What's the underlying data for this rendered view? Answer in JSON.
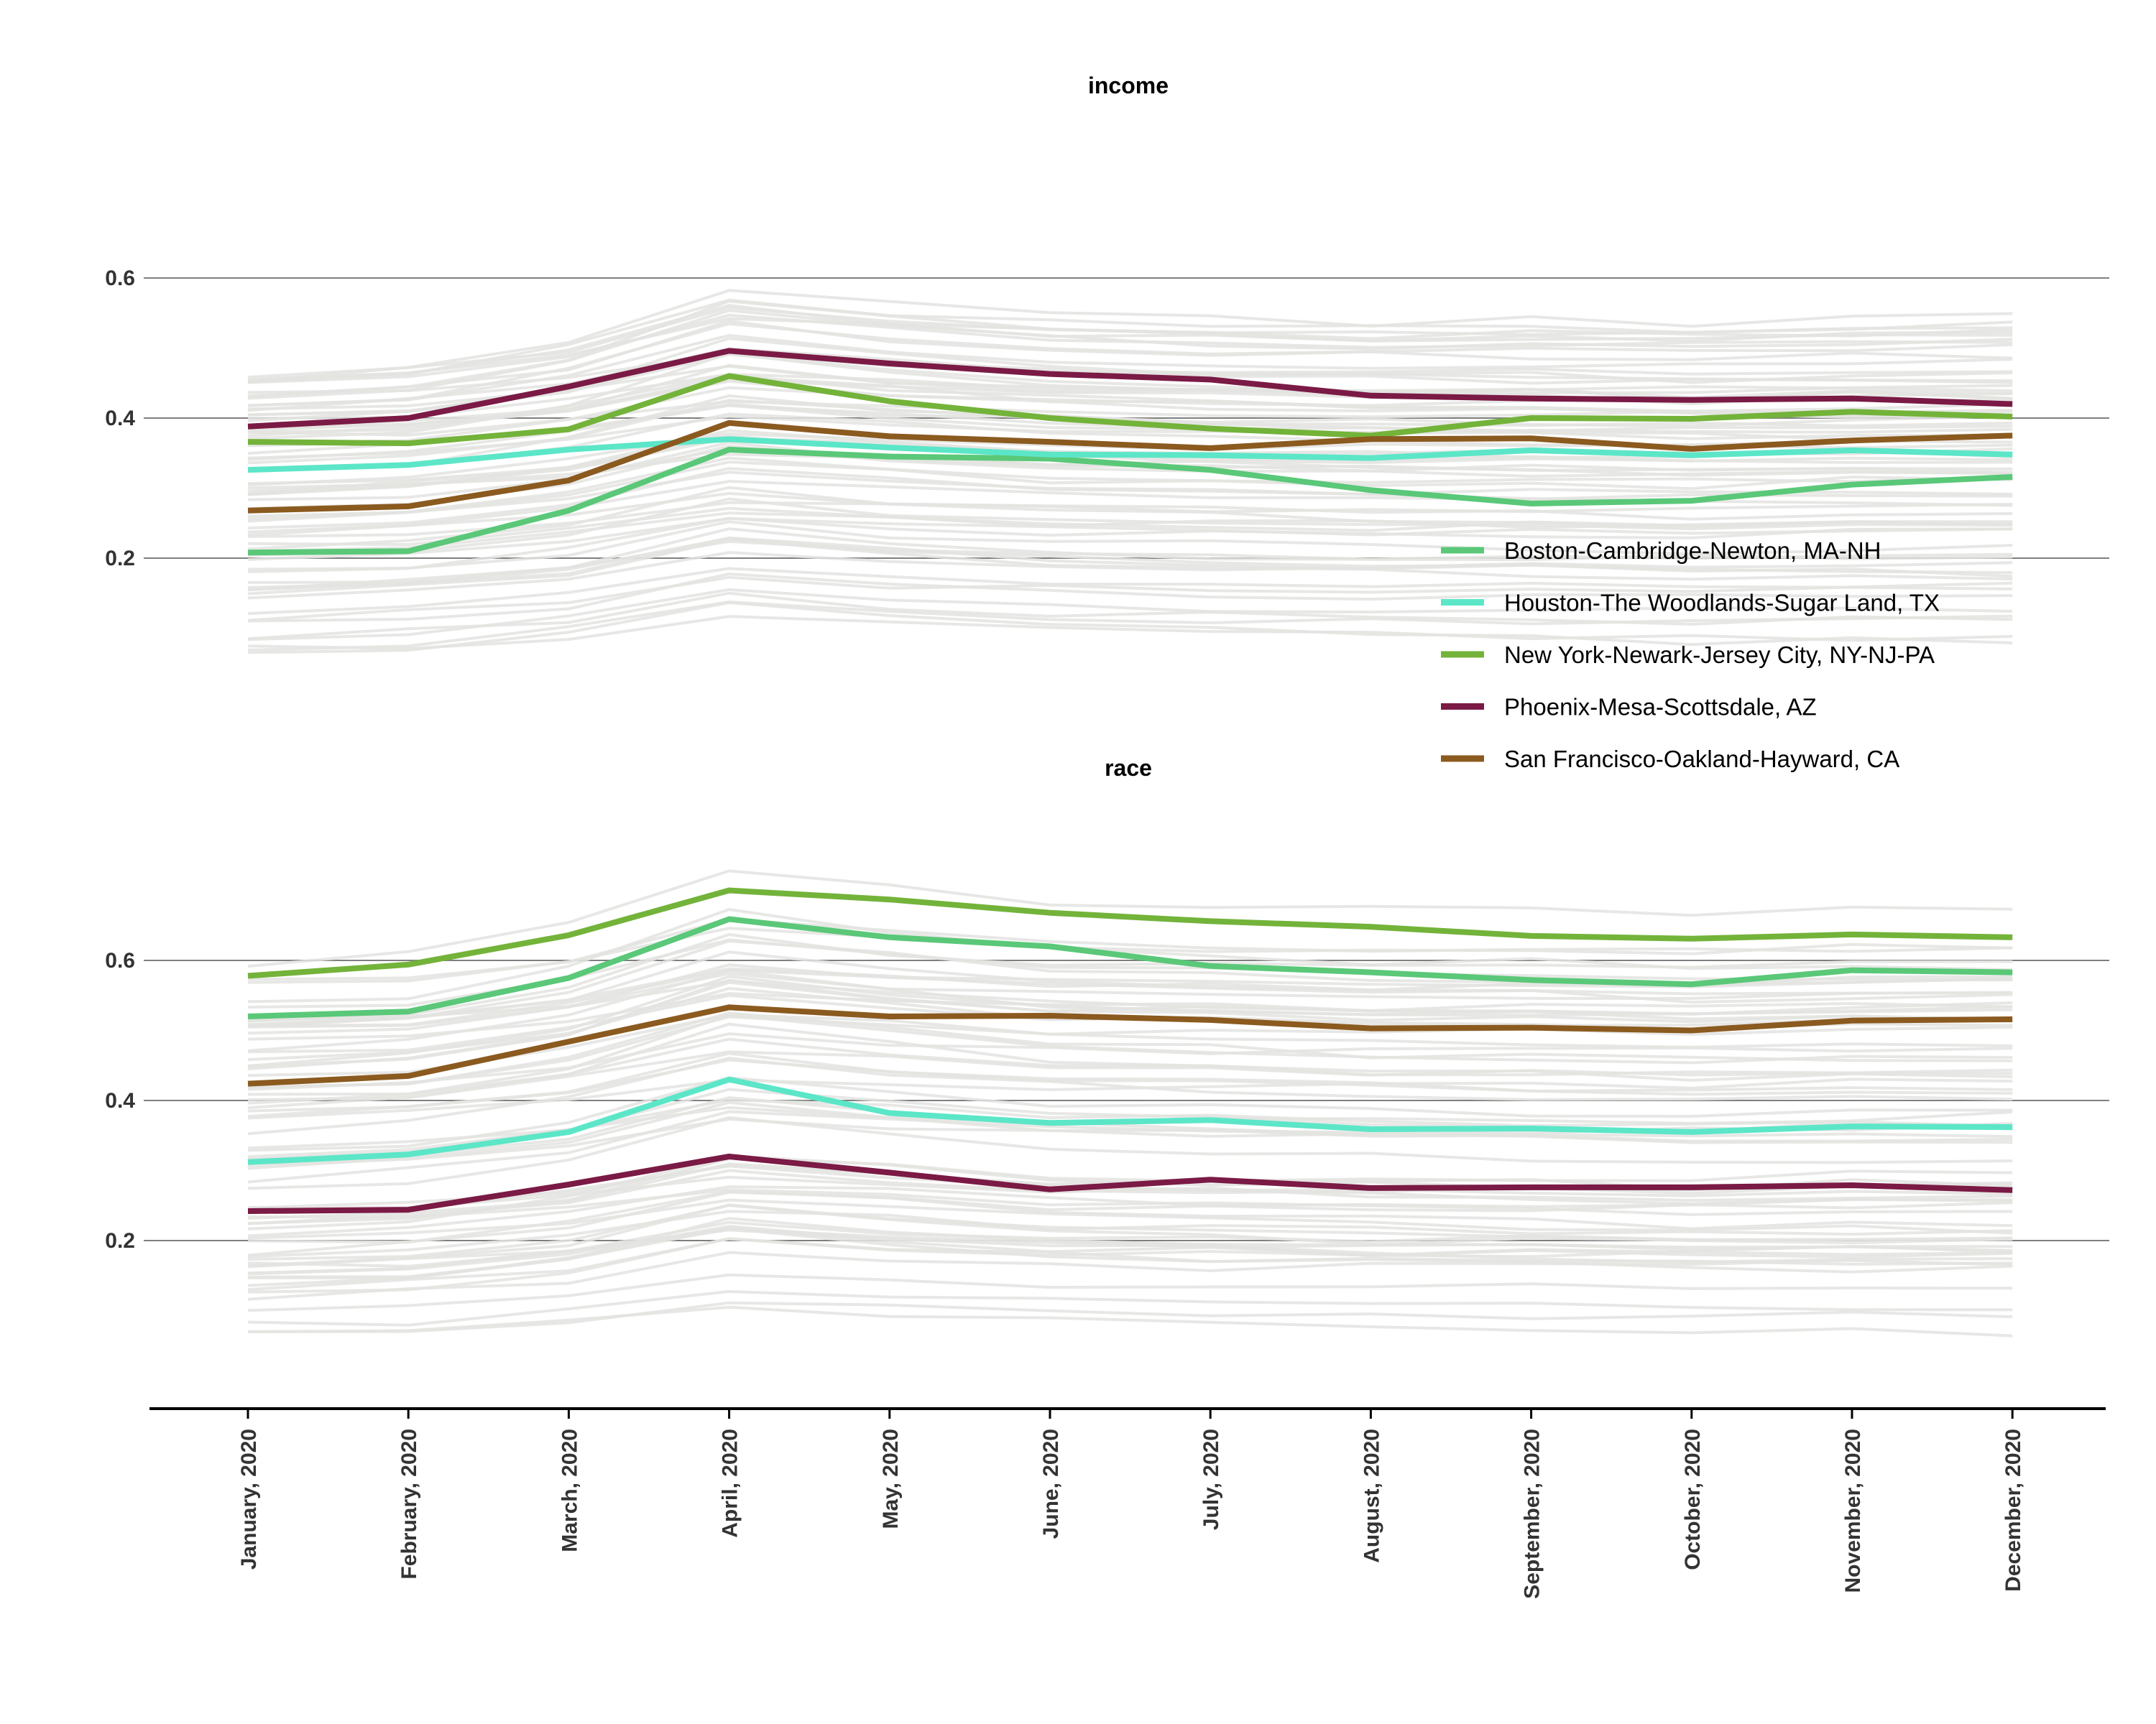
{
  "chart_data": {
    "type": "line",
    "x": [
      "January, 2020",
      "February, 2020",
      "March, 2020",
      "April, 2020",
      "May, 2020",
      "June, 2020",
      "July, 2020",
      "August, 2020",
      "September, 2020",
      "October, 2020",
      "November, 2020",
      "December, 2020"
    ],
    "grid": "horizontal",
    "legend_position": "right",
    "legend": [
      {
        "name": "Boston-Cambridge-Newton, MA-NH",
        "color": "#5ac878"
      },
      {
        "name": "Houston-The Woodlands-Sugar Land, TX",
        "color": "#5ce6c8"
      },
      {
        "name": "New York-Newark-Jersey City, NY-NJ-PA",
        "color": "#73b33a"
      },
      {
        "name": "Phoenix-Mesa-Scottsdale, AZ",
        "color": "#7a1a45"
      },
      {
        "name": "San Francisco-Oakland-Hayward, CA",
        "color": "#8b5a1f"
      }
    ],
    "background_color": "#e3e3e1",
    "panels": [
      {
        "title": "income",
        "yticks": [
          "0.2",
          "0.4",
          "0.6"
        ],
        "series": [
          {
            "name": "Boston-Cambridge-Newton, MA-NH",
            "values": [
              0.208,
              0.21,
              0.268,
              0.355,
              0.345,
              0.342,
              0.326,
              0.297,
              0.278,
              0.282,
              0.305,
              0.316
            ]
          },
          {
            "name": "Houston-The Woodlands-Sugar Land, TX",
            "values": [
              0.326,
              0.333,
              0.355,
              0.37,
              0.358,
              0.348,
              0.347,
              0.343,
              0.354,
              0.347,
              0.354,
              0.348
            ]
          },
          {
            "name": "New York-Newark-Jersey City, NY-NJ-PA",
            "values": [
              0.366,
              0.364,
              0.384,
              0.46,
              0.424,
              0.4,
              0.385,
              0.375,
              0.4,
              0.399,
              0.409,
              0.402
            ]
          },
          {
            "name": "Phoenix-Mesa-Scottsdale, AZ",
            "values": [
              0.388,
              0.4,
              0.445,
              0.496,
              0.478,
              0.463,
              0.455,
              0.432,
              0.428,
              0.426,
              0.428,
              0.42
            ]
          },
          {
            "name": "San Francisco-Oakland-Hayward, CA",
            "values": [
              0.268,
              0.274,
              0.311,
              0.393,
              0.374,
              0.366,
              0.357,
              0.37,
              0.371,
              0.356,
              0.368,
              0.375
            ]
          }
        ]
      },
      {
        "title": "race",
        "yticks": [
          "0.2",
          "0.4",
          "0.6"
        ],
        "series": [
          {
            "name": "Boston-Cambridge-Newton, MA-NH",
            "values": [
              0.52,
              0.527,
              0.575,
              0.659,
              0.633,
              0.62,
              0.592,
              0.583,
              0.572,
              0.566,
              0.586,
              0.583
            ]
          },
          {
            "name": "Houston-The Woodlands-Sugar Land, TX",
            "values": [
              0.312,
              0.323,
              0.355,
              0.43,
              0.382,
              0.368,
              0.372,
              0.359,
              0.36,
              0.355,
              0.363,
              0.362
            ]
          },
          {
            "name": "New York-Newark-Jersey City, NY-NJ-PA",
            "values": [
              0.578,
              0.594,
              0.636,
              0.7,
              0.687,
              0.668,
              0.656,
              0.648,
              0.635,
              0.631,
              0.637,
              0.633
            ]
          },
          {
            "name": "Phoenix-Mesa-Scottsdale, AZ",
            "values": [
              0.242,
              0.244,
              0.28,
              0.32,
              0.297,
              0.273,
              0.287,
              0.275,
              0.276,
              0.276,
              0.279,
              0.272
            ]
          },
          {
            "name": "San Francisco-Oakland-Hayward, CA",
            "values": [
              0.424,
              0.435,
              0.484,
              0.533,
              0.52,
              0.521,
              0.515,
              0.503,
              0.504,
              0.5,
              0.514,
              0.516
            ]
          }
        ]
      }
    ]
  }
}
